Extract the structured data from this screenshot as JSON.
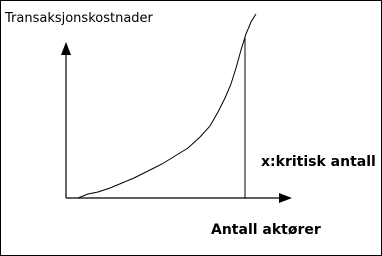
{
  "y_axis_label": "Transaksjonskostnader",
  "critical_label": "x:kritisk antall",
  "x_axis_label": "Antall aktører"
}
